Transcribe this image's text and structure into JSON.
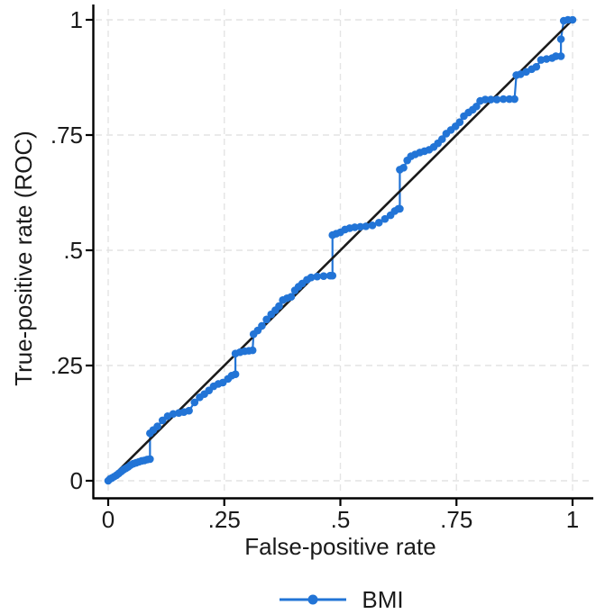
{
  "chart_data": {
    "type": "line",
    "subtype": "roc-step-curve-with-markers-and-reference-diagonal",
    "title": "",
    "xlabel": "False-positive rate",
    "ylabel": "True-positive rate (ROC)",
    "xlim": [
      0,
      1
    ],
    "ylim": [
      0,
      1
    ],
    "grid": "dashed-both-axes",
    "xticks": {
      "values": [
        0,
        0.25,
        0.5,
        0.75,
        1
      ],
      "labels": [
        "0",
        ".25",
        ".5",
        ".75",
        "1"
      ]
    },
    "yticks": {
      "values": [
        0,
        0.25,
        0.5,
        0.75,
        1
      ],
      "labels": [
        "0",
        ".25",
        ".5",
        ".75",
        "1"
      ]
    },
    "legend": {
      "position": "bottom-center",
      "entries": [
        {
          "label": "BMI",
          "color": "#2274d6",
          "marker": "circle",
          "line": true
        }
      ]
    },
    "reference_line": {
      "from": [
        0,
        0
      ],
      "to": [
        1,
        1
      ],
      "color": "#1a1a1a"
    },
    "series": [
      {
        "name": "BMI",
        "color": "#2274d6",
        "marker": "circle",
        "points": [
          [
            0.0,
            0.0
          ],
          [
            0.004,
            0.004
          ],
          [
            0.008,
            0.006
          ],
          [
            0.013,
            0.009
          ],
          [
            0.018,
            0.012
          ],
          [
            0.023,
            0.016
          ],
          [
            0.028,
            0.02
          ],
          [
            0.033,
            0.024
          ],
          [
            0.038,
            0.027
          ],
          [
            0.043,
            0.03
          ],
          [
            0.048,
            0.034
          ],
          [
            0.054,
            0.037
          ],
          [
            0.06,
            0.039
          ],
          [
            0.066,
            0.041
          ],
          [
            0.072,
            0.043
          ],
          [
            0.078,
            0.044
          ],
          [
            0.084,
            0.046
          ],
          [
            0.09,
            0.047
          ],
          [
            0.09,
            0.103
          ],
          [
            0.097,
            0.11
          ],
          [
            0.106,
            0.118
          ],
          [
            0.117,
            0.131
          ],
          [
            0.128,
            0.14
          ],
          [
            0.14,
            0.145
          ],
          [
            0.152,
            0.147
          ],
          [
            0.163,
            0.149
          ],
          [
            0.174,
            0.152
          ],
          [
            0.186,
            0.17
          ],
          [
            0.197,
            0.181
          ],
          [
            0.207,
            0.188
          ],
          [
            0.217,
            0.196
          ],
          [
            0.227,
            0.205
          ],
          [
            0.237,
            0.21
          ],
          [
            0.247,
            0.213
          ],
          [
            0.258,
            0.221
          ],
          [
            0.266,
            0.228
          ],
          [
            0.274,
            0.231
          ],
          [
            0.274,
            0.276
          ],
          [
            0.284,
            0.279
          ],
          [
            0.294,
            0.281
          ],
          [
            0.303,
            0.282
          ],
          [
            0.311,
            0.283
          ],
          [
            0.313,
            0.318
          ],
          [
            0.322,
            0.326
          ],
          [
            0.331,
            0.336
          ],
          [
            0.341,
            0.35
          ],
          [
            0.351,
            0.361
          ],
          [
            0.36,
            0.37
          ],
          [
            0.368,
            0.379
          ],
          [
            0.376,
            0.392
          ],
          [
            0.385,
            0.396
          ],
          [
            0.394,
            0.399
          ],
          [
            0.402,
            0.413
          ],
          [
            0.41,
            0.421
          ],
          [
            0.418,
            0.428
          ],
          [
            0.428,
            0.436
          ],
          [
            0.437,
            0.441
          ],
          [
            0.45,
            0.443
          ],
          [
            0.464,
            0.444
          ],
          [
            0.478,
            0.445
          ],
          [
            0.483,
            0.445
          ],
          [
            0.483,
            0.533
          ],
          [
            0.491,
            0.536
          ],
          [
            0.5,
            0.539
          ],
          [
            0.51,
            0.545
          ],
          [
            0.52,
            0.548
          ],
          [
            0.531,
            0.55
          ],
          [
            0.543,
            0.551
          ],
          [
            0.555,
            0.552
          ],
          [
            0.569,
            0.554
          ],
          [
            0.583,
            0.56
          ],
          [
            0.596,
            0.568
          ],
          [
            0.608,
            0.576
          ],
          [
            0.617,
            0.585
          ],
          [
            0.625,
            0.59
          ],
          [
            0.628,
            0.59
          ],
          [
            0.628,
            0.675
          ],
          [
            0.636,
            0.679
          ],
          [
            0.644,
            0.695
          ],
          [
            0.652,
            0.704
          ],
          [
            0.661,
            0.708
          ],
          [
            0.671,
            0.712
          ],
          [
            0.681,
            0.715
          ],
          [
            0.691,
            0.718
          ],
          [
            0.701,
            0.724
          ],
          [
            0.71,
            0.732
          ],
          [
            0.719,
            0.741
          ],
          [
            0.728,
            0.753
          ],
          [
            0.738,
            0.761
          ],
          [
            0.748,
            0.769
          ],
          [
            0.757,
            0.778
          ],
          [
            0.766,
            0.791
          ],
          [
            0.776,
            0.799
          ],
          [
            0.785,
            0.805
          ],
          [
            0.793,
            0.812
          ],
          [
            0.801,
            0.824
          ],
          [
            0.812,
            0.827
          ],
          [
            0.824,
            0.827
          ],
          [
            0.837,
            0.827
          ],
          [
            0.851,
            0.828
          ],
          [
            0.864,
            0.828
          ],
          [
            0.875,
            0.828
          ],
          [
            0.879,
            0.88
          ],
          [
            0.888,
            0.882
          ],
          [
            0.9,
            0.887
          ],
          [
            0.912,
            0.893
          ],
          [
            0.922,
            0.898
          ],
          [
            0.932,
            0.913
          ],
          [
            0.944,
            0.915
          ],
          [
            0.956,
            0.917
          ],
          [
            0.964,
            0.921
          ],
          [
            0.975,
            0.921
          ],
          [
            0.975,
            0.958
          ],
          [
            0.981,
            0.998
          ],
          [
            0.99,
            1.0
          ],
          [
            1.0,
            1.0
          ]
        ]
      }
    ]
  },
  "colors": {
    "background": "#ffffff",
    "series_blue": "#2274d6",
    "reference_black": "#1a1a1a",
    "axis": "#000000",
    "grid": "#e4e4e4",
    "text": "#1a1a1a"
  }
}
